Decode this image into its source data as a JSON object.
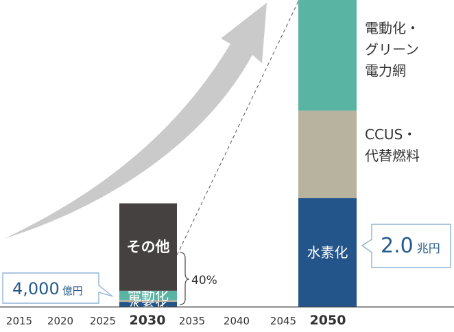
{
  "chart_data": {
    "type": "bar",
    "stacked": true,
    "categories": [
      "2015",
      "2020",
      "2025",
      "2030",
      "2035",
      "2040",
      "2045",
      "2050"
    ],
    "highlighted_categories": [
      "2030",
      "2050"
    ],
    "series": [
      {
        "name": "水素化",
        "values": [
          null,
          null,
          null,
          0.18,
          null,
          null,
          null,
          4.1
        ]
      },
      {
        "name": "CCUS・代替燃料",
        "values": [
          null,
          null,
          null,
          0.07,
          null,
          null,
          null,
          3.3
        ]
      },
      {
        "name": "電動化",
        "values": [
          null,
          null,
          null,
          0.35,
          null,
          null,
          null,
          4.2
        ]
      },
      {
        "name": "その他",
        "values": [
          null,
          null,
          null,
          3.3,
          null,
          null,
          null,
          null
        ]
      }
    ],
    "segment_labels": {
      "2030": [
        "水素化",
        "",
        "電動化",
        "その他"
      ],
      "2050": [
        "水素化",
        "",
        "",
        ""
      ]
    },
    "side_labels_2050": [
      "電動化・\nグリーン\n電力網",
      "CCUS・\n代替燃料",
      ""
    ],
    "bracket_label": "40%",
    "callouts": [
      {
        "number": "4,000",
        "unit": "億円"
      },
      {
        "number": "2.0",
        "unit": "兆円"
      }
    ],
    "legend": "none",
    "grid": false
  },
  "colors": {
    "hydrogen": "#23548a",
    "ccus": "#b8b39e",
    "electrification": "#5ab4a4",
    "other": "#454140",
    "arrow": "#cacaca",
    "axis": "#444444",
    "callout_text": "#245a8d"
  }
}
